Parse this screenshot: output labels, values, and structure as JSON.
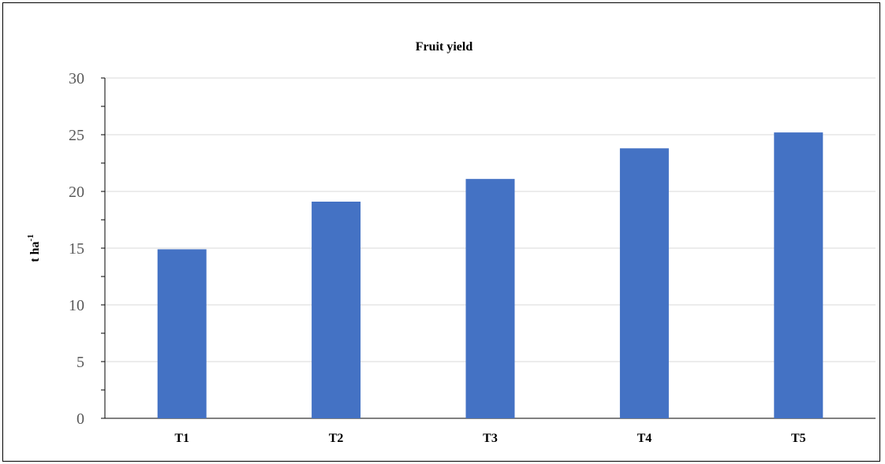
{
  "chart_data": {
    "type": "bar",
    "title": "Fruit yield",
    "xlabel": "",
    "ylabel": "t ha",
    "ylabel_superscript": "-1",
    "categories": [
      "T1",
      "T2",
      "T3",
      "T4",
      "T5"
    ],
    "values": [
      14.9,
      19.1,
      21.1,
      23.8,
      25.2
    ],
    "ylim": [
      0,
      30
    ],
    "yticks": [
      0,
      5,
      10,
      15,
      20,
      25,
      30
    ],
    "grid": true,
    "legend": "none",
    "bar_color": "#4472C4",
    "grid_color": "#D9D9D9"
  }
}
